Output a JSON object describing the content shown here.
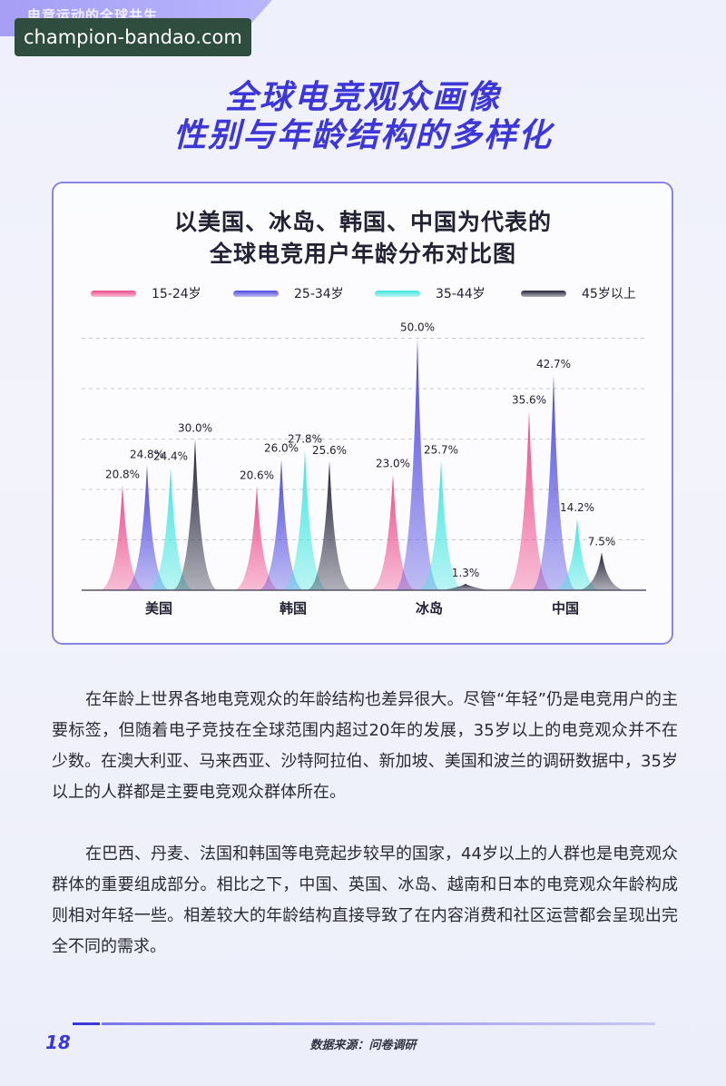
{
  "header": {
    "section_tag": "电竞运动的全球共生",
    "watermark": "champion-bandao.com",
    "title_line1": "全球电竞观众画像",
    "title_line2": "性别与年龄结构的多样化"
  },
  "chart_data": {
    "type": "area",
    "title_line1": "以美国、冰岛、韩国、中国为代表的",
    "title_line2": "全球电竞用户年龄分布对比图",
    "categories": [
      "美国",
      "韩国",
      "冰岛",
      "中国"
    ],
    "series": [
      {
        "name": "15-24岁",
        "color": "#ee4a8a",
        "values": [
          20.8,
          20.6,
          23.0,
          35.6
        ]
      },
      {
        "name": "25-34岁",
        "color": "#4d47e0",
        "values": [
          24.8,
          26.0,
          50.0,
          42.7
        ]
      },
      {
        "name": "35-44岁",
        "color": "#3ee6e0",
        "values": [
          24.4,
          27.8,
          25.7,
          14.2
        ]
      },
      {
        "name": "45岁以上",
        "color": "#23233a",
        "values": [
          30.0,
          25.6,
          1.3,
          7.5
        ]
      }
    ],
    "value_labels": [
      [
        "20.8%",
        "24.8%",
        "24.4%",
        "30.0%"
      ],
      [
        "20.6%",
        "26.0%",
        "27.8%",
        "25.6%"
      ],
      [
        "23.0%",
        "50.0%",
        "25.7%",
        "1.3%"
      ],
      [
        "35.6%",
        "42.7%",
        "14.2%",
        "7.5%"
      ]
    ],
    "ylim": [
      0,
      50
    ],
    "grid": true,
    "legend": "top"
  },
  "body": {
    "paragraph1": "在年龄上世界各地电竞观众的年龄结构也差异很大。尽管“年轻”仍是电竞用户的主要标签，但随着电子竞技在全球范围内超过20年的发展，35岁以上的电竞观众并不在少数。在澳大利亚、马来西亚、沙特阿拉伯、新加坡、美国和波兰的调研数据中，35岁以上的人群都是主要电竞观众群体所在。",
    "paragraph2": "在巴西、丹麦、法国和韩国等电竞起步较早的国家，44岁以上的人群也是电竞观众群体的重要组成部分。相比之下，中国、英国、冰岛、越南和日本的电竞观众年龄构成则相对年轻一些。相差较大的年龄结构直接导致了在内容消费和社区运营都会呈现出完全不同的需求。"
  },
  "footer": {
    "page_number": "18",
    "source": "数据来源：问卷调研"
  }
}
